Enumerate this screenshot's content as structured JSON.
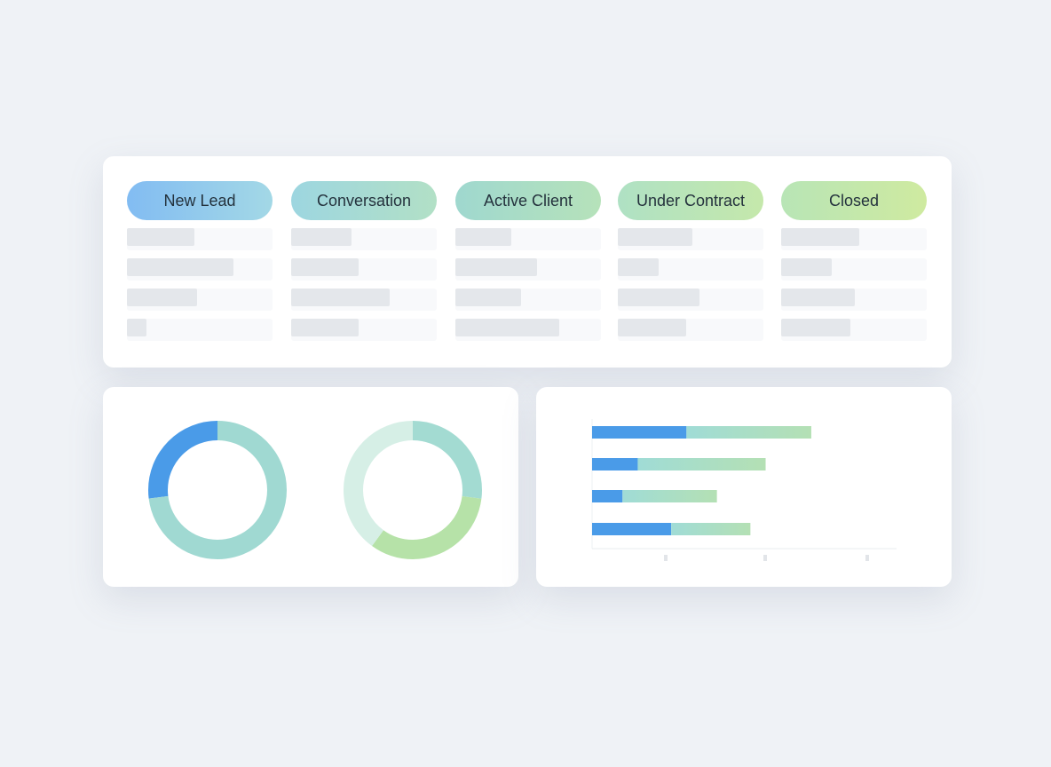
{
  "pipeline": {
    "stages": [
      {
        "label": "New Lead",
        "from": "#82bcf2",
        "to": "#a3d8e6"
      },
      {
        "label": "Conversation",
        "from": "#9dd6e0",
        "to": "#b2e0c6"
      },
      {
        "label": "Active Client",
        "from": "#9fd8cf",
        "to": "#b6e2ba"
      },
      {
        "label": "Under Contract",
        "from": "#afe1c4",
        "to": "#c5e8ab"
      },
      {
        "label": "Closed",
        "from": "#b8e5b6",
        "to": "#cfeaa0"
      }
    ]
  },
  "colors": {
    "blue": "#4a9be8",
    "teal": "#9fd8d6",
    "green": "#b3e0b0",
    "mint": "#d6efe6"
  },
  "chart_data": [
    {
      "type": "pie",
      "variant": "donut",
      "slices": [
        {
          "value": 27,
          "color": "#4a9be8"
        },
        {
          "value": 73,
          "color": "#a0d9d2"
        }
      ]
    },
    {
      "type": "pie",
      "variant": "donut",
      "slices": [
        {
          "value": 27,
          "color": "#a3dbd2"
        },
        {
          "value": 33,
          "color": "#b6e2a8"
        },
        {
          "value": 40,
          "color": "#d6efe6"
        }
      ]
    },
    {
      "type": "bar",
      "orientation": "horizontal",
      "stacked": true,
      "unit": "percent of axis",
      "xlim": [
        0,
        100
      ],
      "grid": false,
      "series": [
        {
          "values": [
            31,
            15,
            10,
            26
          ],
          "color": "#4a9be8"
        },
        {
          "values": [
            41,
            42,
            31,
            26
          ],
          "color": "#a8dcc8"
        }
      ]
    }
  ]
}
